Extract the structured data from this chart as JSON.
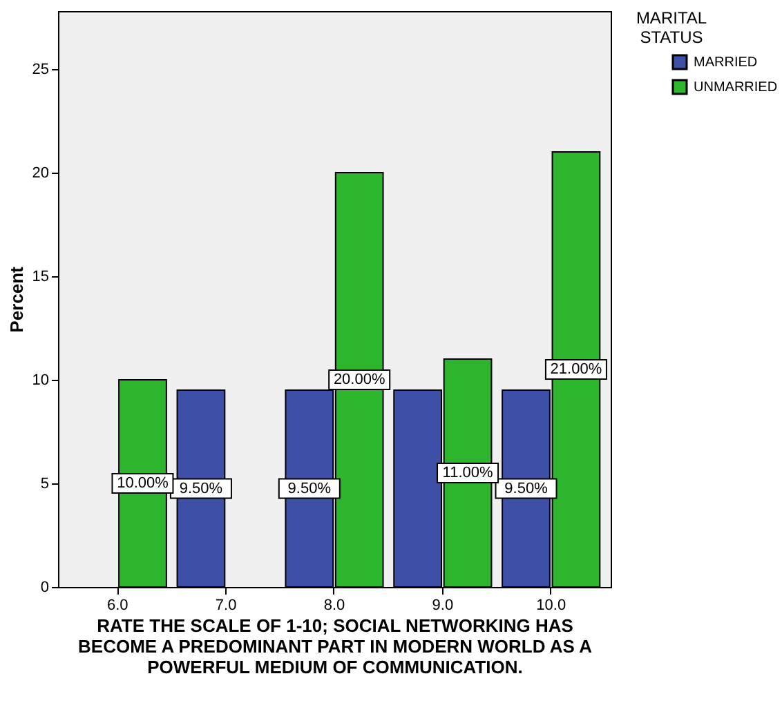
{
  "chart_data": {
    "type": "bar",
    "xlabel": "RATE THE SCALE OF 1-10; SOCIAL NETWORKING HAS BECOME A PREDOMINANT PART IN MODERN WORLD AS A POWERFUL MEDIUM OF COMMUNICATION.",
    "ylabel": "Percent",
    "legend_title": "MARITAL STATUS",
    "legend": "top right",
    "categories": [
      "6.0",
      "7.0",
      "8.0",
      "9.0",
      "10.0"
    ],
    "series": [
      {
        "name": "MARRIED",
        "color": "#3e4fa8",
        "values": [
          null,
          9.5,
          9.5,
          9.5,
          9.5
        ],
        "value_labels": [
          null,
          "9.50%",
          "9.50%",
          null,
          "9.50%"
        ]
      },
      {
        "name": "UNMARRIED",
        "color": "#2db52d",
        "values": [
          10,
          null,
          20,
          11,
          21
        ],
        "value_labels": [
          "10.00%",
          null,
          "20.00%",
          "11.00%",
          "21.00%"
        ]
      }
    ],
    "ylim": [
      0,
      27.8
    ],
    "yticks": [
      0,
      5,
      10,
      15,
      20,
      25
    ],
    "grid": false
  }
}
